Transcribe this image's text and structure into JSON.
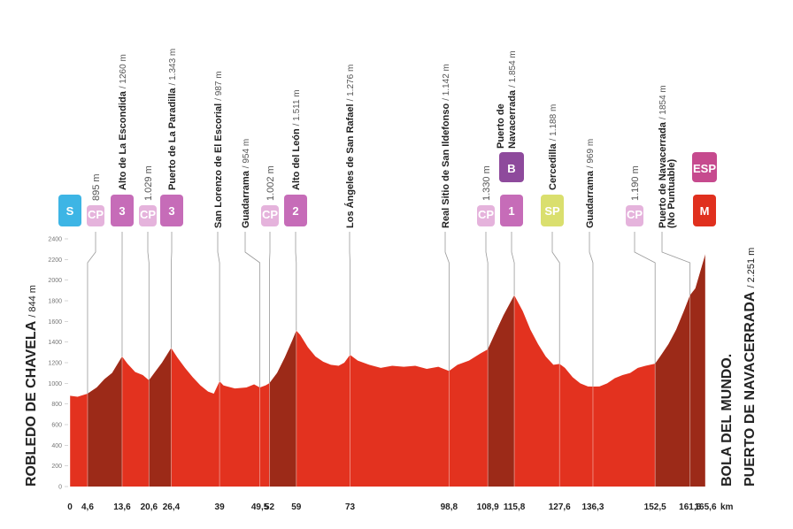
{
  "chart_data": {
    "type": "elevation-profile",
    "xlabel": "km",
    "color": "#e3321f",
    "climb_color": "#9c2a18",
    "xlim": [
      0,
      165.6
    ],
    "ylim": [
      0,
      2400
    ],
    "x": [
      0,
      2,
      4.6,
      7,
      9,
      11,
      13.6,
      15,
      17,
      19,
      20.6,
      22,
      24,
      26.4,
      28,
      30,
      32,
      34,
      36,
      37.5,
      39,
      40,
      43,
      46,
      48,
      49.5,
      51,
      52,
      54,
      56,
      58,
      59,
      60,
      62,
      64,
      66,
      68,
      70,
      71.5,
      73,
      75,
      78,
      81,
      84,
      87,
      90,
      93,
      96,
      98.8,
      101,
      104,
      107,
      108.9,
      111,
      113,
      115.8,
      118,
      120,
      122,
      124,
      126,
      127.6,
      129,
      131,
      133,
      135,
      136.3,
      138,
      140,
      142,
      144,
      146,
      148,
      150,
      152.5,
      154,
      156,
      158,
      160,
      161.6,
      163,
      165.6
    ],
    "values": [
      880,
      870,
      900,
      960,
      1040,
      1100,
      1260,
      1190,
      1110,
      1080,
      1030,
      1100,
      1200,
      1343,
      1250,
      1150,
      1060,
      980,
      920,
      900,
      1020,
      980,
      950,
      960,
      990,
      960,
      980,
      1002,
      1100,
      1250,
      1420,
      1511,
      1470,
      1350,
      1260,
      1210,
      1180,
      1170,
      1200,
      1276,
      1220,
      1180,
      1150,
      1170,
      1160,
      1170,
      1140,
      1160,
      1120,
      1180,
      1220,
      1290,
      1330,
      1500,
      1660,
      1854,
      1700,
      1520,
      1380,
      1260,
      1180,
      1188,
      1150,
      1060,
      1000,
      970,
      969,
      970,
      1000,
      1050,
      1080,
      1100,
      1150,
      1170,
      1190,
      1270,
      1380,
      1520,
      1700,
      1854,
      1920,
      2251
    ],
    "xticks": [
      0,
      {
        "value": 4.6,
        "label": "4,6"
      },
      {
        "value": 13.6,
        "label": "13,6"
      },
      {
        "value": 20.6,
        "label": "20,6"
      },
      {
        "value": 26.4,
        "label": "26,4"
      },
      39,
      {
        "value": 49.5,
        "label": "49,5"
      },
      52,
      59,
      73,
      {
        "value": 98.8,
        "label": "98,8"
      },
      {
        "value": 108.9,
        "label": "108,9"
      },
      {
        "value": 115.8,
        "label": "115,8"
      },
      {
        "value": 127.6,
        "label": "127,6"
      },
      {
        "value": 136.3,
        "label": "136,3"
      },
      {
        "value": 152.5,
        "label": "152,5"
      },
      {
        "value": 161.6,
        "label": "161,6"
      },
      {
        "value": 165.6,
        "label": "165,6"
      }
    ],
    "yticks": [
      0,
      200,
      400,
      600,
      800,
      1000,
      1200,
      1400,
      1600,
      1800,
      2000,
      2200,
      2400
    ],
    "waypoints": [
      {
        "name": [
          "ROBLEDO DE CHAVELA"
        ],
        "altitude": "/ 844 m",
        "badge": "S",
        "badge_color": "#3db5e5"
      },
      {
        "altitude": "895 m",
        "badge": "CP",
        "badge_color": "#e5b3dc"
      },
      {
        "name": [
          "Alto de La Escondida"
        ],
        "altitude": "/ 1260 m",
        "badge": "3",
        "badge_color": "#c66cb8",
        "climb": true
      },
      {
        "altitude": "1.029 m",
        "badge": "CP",
        "badge_color": "#e5b3dc"
      },
      {
        "name": [
          "Puerto de La Paradilla"
        ],
        "altitude": "/ 1.343 m",
        "badge": "3",
        "badge_color": "#c66cb8",
        "climb": true
      },
      {
        "name": [
          "San Lorenzo de El Escorial"
        ],
        "altitude": "/ 987 m"
      },
      {
        "name": [
          "Guadarrama"
        ],
        "altitude": "/ 954 m"
      },
      {
        "altitude": "1.002 m",
        "badge": "CP",
        "badge_color": "#e5b3dc"
      },
      {
        "name": [
          "Alto del León"
        ],
        "altitude": "/ 1.511 m",
        "badge": "2",
        "badge_color": "#c66cb8",
        "climb": true
      },
      {
        "name": [
          "Los Ángeles de San Rafael"
        ],
        "altitude": "/ 1.276 m"
      },
      {
        "name": [
          "Real Sitio de San Ildefonso"
        ],
        "altitude": "/ 1.142 m"
      },
      {
        "altitude": "1.330 m",
        "badge": "CP",
        "badge_color": "#e5b3dc"
      },
      {
        "name": [
          "Puerto de",
          "Navacerrada"
        ],
        "altitude": "/ 1.854 m",
        "badge": "1",
        "badge_color": "#c66cb8",
        "top_badge": "B",
        "top_badge_color": "#8e4a9c",
        "climb": true
      },
      {
        "name": [
          "Cercedilla"
        ],
        "altitude": "/ 1.188 m",
        "badge": "SP",
        "badge_color": "#dadf6e"
      },
      {
        "name": [
          "Guadarrama"
        ],
        "altitude": "/ 969 m"
      },
      {
        "altitude": "1.190 m",
        "badge": "CP",
        "badge_color": "#e5b3dc"
      },
      {
        "name": [
          "Puerto de Navacerrada"
        ],
        "altitude": "/ 1854 m",
        "note": "(No Puntuable)",
        "climb": true
      },
      {
        "name": [
          "BOLA DEL MUNDO.",
          "PUERTO DE NAVACERRADA"
        ],
        "altitude": "/ 2.251 m",
        "badge": "M",
        "badge_color": "#e0301e",
        "top_badge": "ESP",
        "top_badge_color": "#c64a8e",
        "climb": true
      }
    ]
  }
}
